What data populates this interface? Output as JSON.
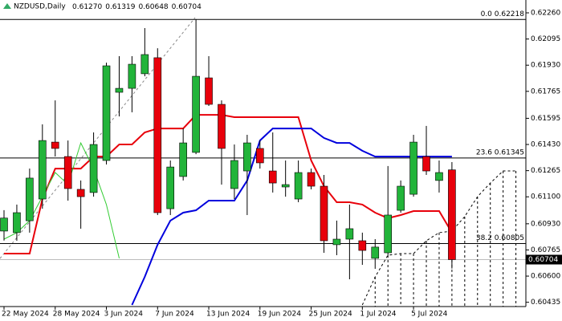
{
  "chart_data": {
    "type": "candlestick",
    "title": "NZDUSD,Daily",
    "header_values": [
      "0.61270",
      "0.61319",
      "0.60648",
      "0.60704"
    ],
    "categories": [
      "22 May 2024",
      null,
      null,
      null,
      "28 May 2024",
      null,
      null,
      null,
      "3 Jun 2024",
      null,
      null,
      null,
      "7 Jun 2024",
      null,
      null,
      null,
      "13 Jun 2024",
      null,
      null,
      null,
      "19 Jun 2024",
      null,
      null,
      null,
      "25 Jun 2024",
      null,
      null,
      null,
      "1 Jul 2024",
      null,
      null,
      null,
      "5 Jul 2024",
      null,
      null,
      null,
      null,
      null,
      null,
      null,
      null
    ],
    "open": [
      0.60884,
      0.60874,
      0.60949,
      0.61086,
      0.61445,
      0.61354,
      0.61147,
      0.61127,
      0.61329,
      0.61759,
      0.61784,
      0.61876,
      0.61977,
      0.61025,
      0.61228,
      0.6138,
      0.6185,
      0.61683,
      0.61152,
      0.61263,
      0.61405,
      0.61263,
      0.61162,
      0.61086,
      0.61253,
      0.61167,
      0.60798,
      0.60833,
      0.60823,
      0.60712,
      0.60747,
      0.61015,
      0.61116,
      0.61354,
      0.61203,
      0.6127,
      null,
      null,
      null,
      null,
      null
    ],
    "high": [
      0.61016,
      0.61051,
      0.61278,
      0.61557,
      0.61708,
      0.61455,
      0.61203,
      0.61506,
      0.61946,
      0.61987,
      0.61987,
      0.62164,
      0.62037,
      0.61329,
      0.61531,
      0.62218,
      0.61987,
      0.61708,
      0.6143,
      0.61491,
      0.61455,
      0.61506,
      0.61329,
      0.61329,
      0.61278,
      0.61238,
      0.6095,
      0.61051,
      0.60874,
      0.60833,
      0.61294,
      0.61203,
      0.61491,
      0.61547,
      0.61329,
      0.61319,
      null,
      null,
      null,
      null,
      null
    ],
    "low": [
      0.60824,
      0.60823,
      0.60874,
      0.61025,
      0.61354,
      0.61076,
      0.60899,
      0.61101,
      0.61304,
      0.61607,
      0.61633,
      0.6186,
      0.60985,
      0.60985,
      0.61203,
      0.61369,
      0.61673,
      0.61177,
      0.61086,
      0.60985,
      0.61278,
      0.61127,
      0.61101,
      0.61066,
      0.61147,
      0.60747,
      0.60732,
      0.6058,
      0.60671,
      0.60646,
      0.60732,
      0.61,
      0.61101,
      0.61238,
      0.61127,
      0.60648,
      null,
      null,
      null,
      null,
      null
    ],
    "close": [
      0.60966,
      0.61,
      0.61218,
      0.61455,
      0.61405,
      0.61152,
      0.61101,
      0.6143,
      0.61926,
      0.61784,
      0.61936,
      0.61997,
      0.61,
      0.61288,
      0.6144,
      0.6186,
      0.61683,
      0.61405,
      0.61329,
      0.6144,
      0.61314,
      0.61187,
      0.61177,
      0.61253,
      0.61167,
      0.60823,
      0.60833,
      0.60899,
      0.60762,
      0.60783,
      0.60985,
      0.61167,
      0.61445,
      0.61263,
      0.61253,
      0.60704,
      null,
      null,
      null,
      null,
      null
    ],
    "up_color": "#22b43a",
    "down_color": "#e8000b",
    "lines": [
      {
        "color": "#e8000b",
        "width": 2,
        "values": [
          0.60742,
          0.60742,
          0.60742,
          0.61086,
          0.61278,
          0.61278,
          0.61278,
          0.61354,
          0.61354,
          0.6143,
          0.6143,
          0.61506,
          0.61531,
          0.61531,
          0.61531,
          0.61617,
          0.61617,
          0.61617,
          0.61602,
          0.61602,
          0.61602,
          0.61602,
          0.61602,
          0.61602,
          0.61329,
          0.61167,
          0.61066,
          0.61066,
          0.61051,
          0.61,
          0.60965,
          0.60985,
          0.6101,
          0.6101,
          0.6101,
          0.60874,
          null,
          null,
          null,
          null,
          null
        ]
      },
      {
        "color": "#0000dd",
        "width": 2,
        "values": [
          null,
          null,
          null,
          null,
          null,
          null,
          null,
          null,
          null,
          null,
          0.60418,
          0.60595,
          0.60798,
          0.6095,
          0.61,
          0.61015,
          0.61076,
          0.61076,
          0.61076,
          0.61203,
          0.61455,
          0.61531,
          0.61531,
          0.61531,
          0.61531,
          0.61471,
          0.6144,
          0.6144,
          0.6139,
          0.61354,
          0.61354,
          0.61354,
          0.61354,
          0.61354,
          0.61354,
          0.61354,
          null,
          null,
          null,
          null,
          null
        ]
      },
      {
        "color": "#33cc33",
        "width": 1,
        "values": [
          0.60833,
          0.60874,
          0.6095,
          0.61101,
          0.61253,
          0.61177,
          0.6144,
          0.61278,
          0.61051,
          0.60712,
          null,
          null,
          null,
          null,
          null,
          null,
          null,
          null,
          null,
          null,
          null,
          null,
          null,
          null,
          null,
          null,
          null,
          null,
          null,
          null,
          null,
          null,
          null,
          null,
          null,
          null,
          null,
          null,
          null,
          null,
          null
        ]
      },
      {
        "color": "#000000",
        "width": 1,
        "dashed": true,
        "values": [
          null,
          null,
          null,
          null,
          null,
          null,
          null,
          null,
          null,
          null,
          null,
          null,
          null,
          null,
          null,
          null,
          null,
          null,
          null,
          null,
          null,
          null,
          null,
          null,
          null,
          null,
          null,
          null,
          0.60418,
          0.60595,
          0.60732,
          0.60742,
          0.60742,
          0.60823,
          0.60874,
          0.60884,
          0.60975,
          0.61101,
          0.61187,
          0.61263,
          0.61263
        ]
      }
    ],
    "levels": [
      {
        "value": 0.62218,
        "label": "0.0 0.62218"
      },
      {
        "value": 0.61345,
        "label": "23.6 0.61345"
      },
      {
        "value": 0.60805,
        "label": "38.2 0.60805"
      }
    ],
    "price_line": {
      "value": 0.60704,
      "label": "0.60704"
    },
    "ylim": [
      0.60408,
      0.62341
    ],
    "yticks": [
      {
        "value": 0.6226,
        "label": "0.62260"
      },
      0.62095,
      {
        "value": 0.6193,
        "label": "0.61930"
      },
      0.61765,
      0.61595,
      {
        "value": 0.6143,
        "label": "0.61430"
      },
      0.61265,
      {
        "value": 0.611,
        "label": "0.61100"
      },
      {
        "value": 0.6093,
        "label": "0.60930"
      },
      0.60765,
      {
        "value": 0.606,
        "label": "0.60600"
      },
      0.60435
    ]
  }
}
